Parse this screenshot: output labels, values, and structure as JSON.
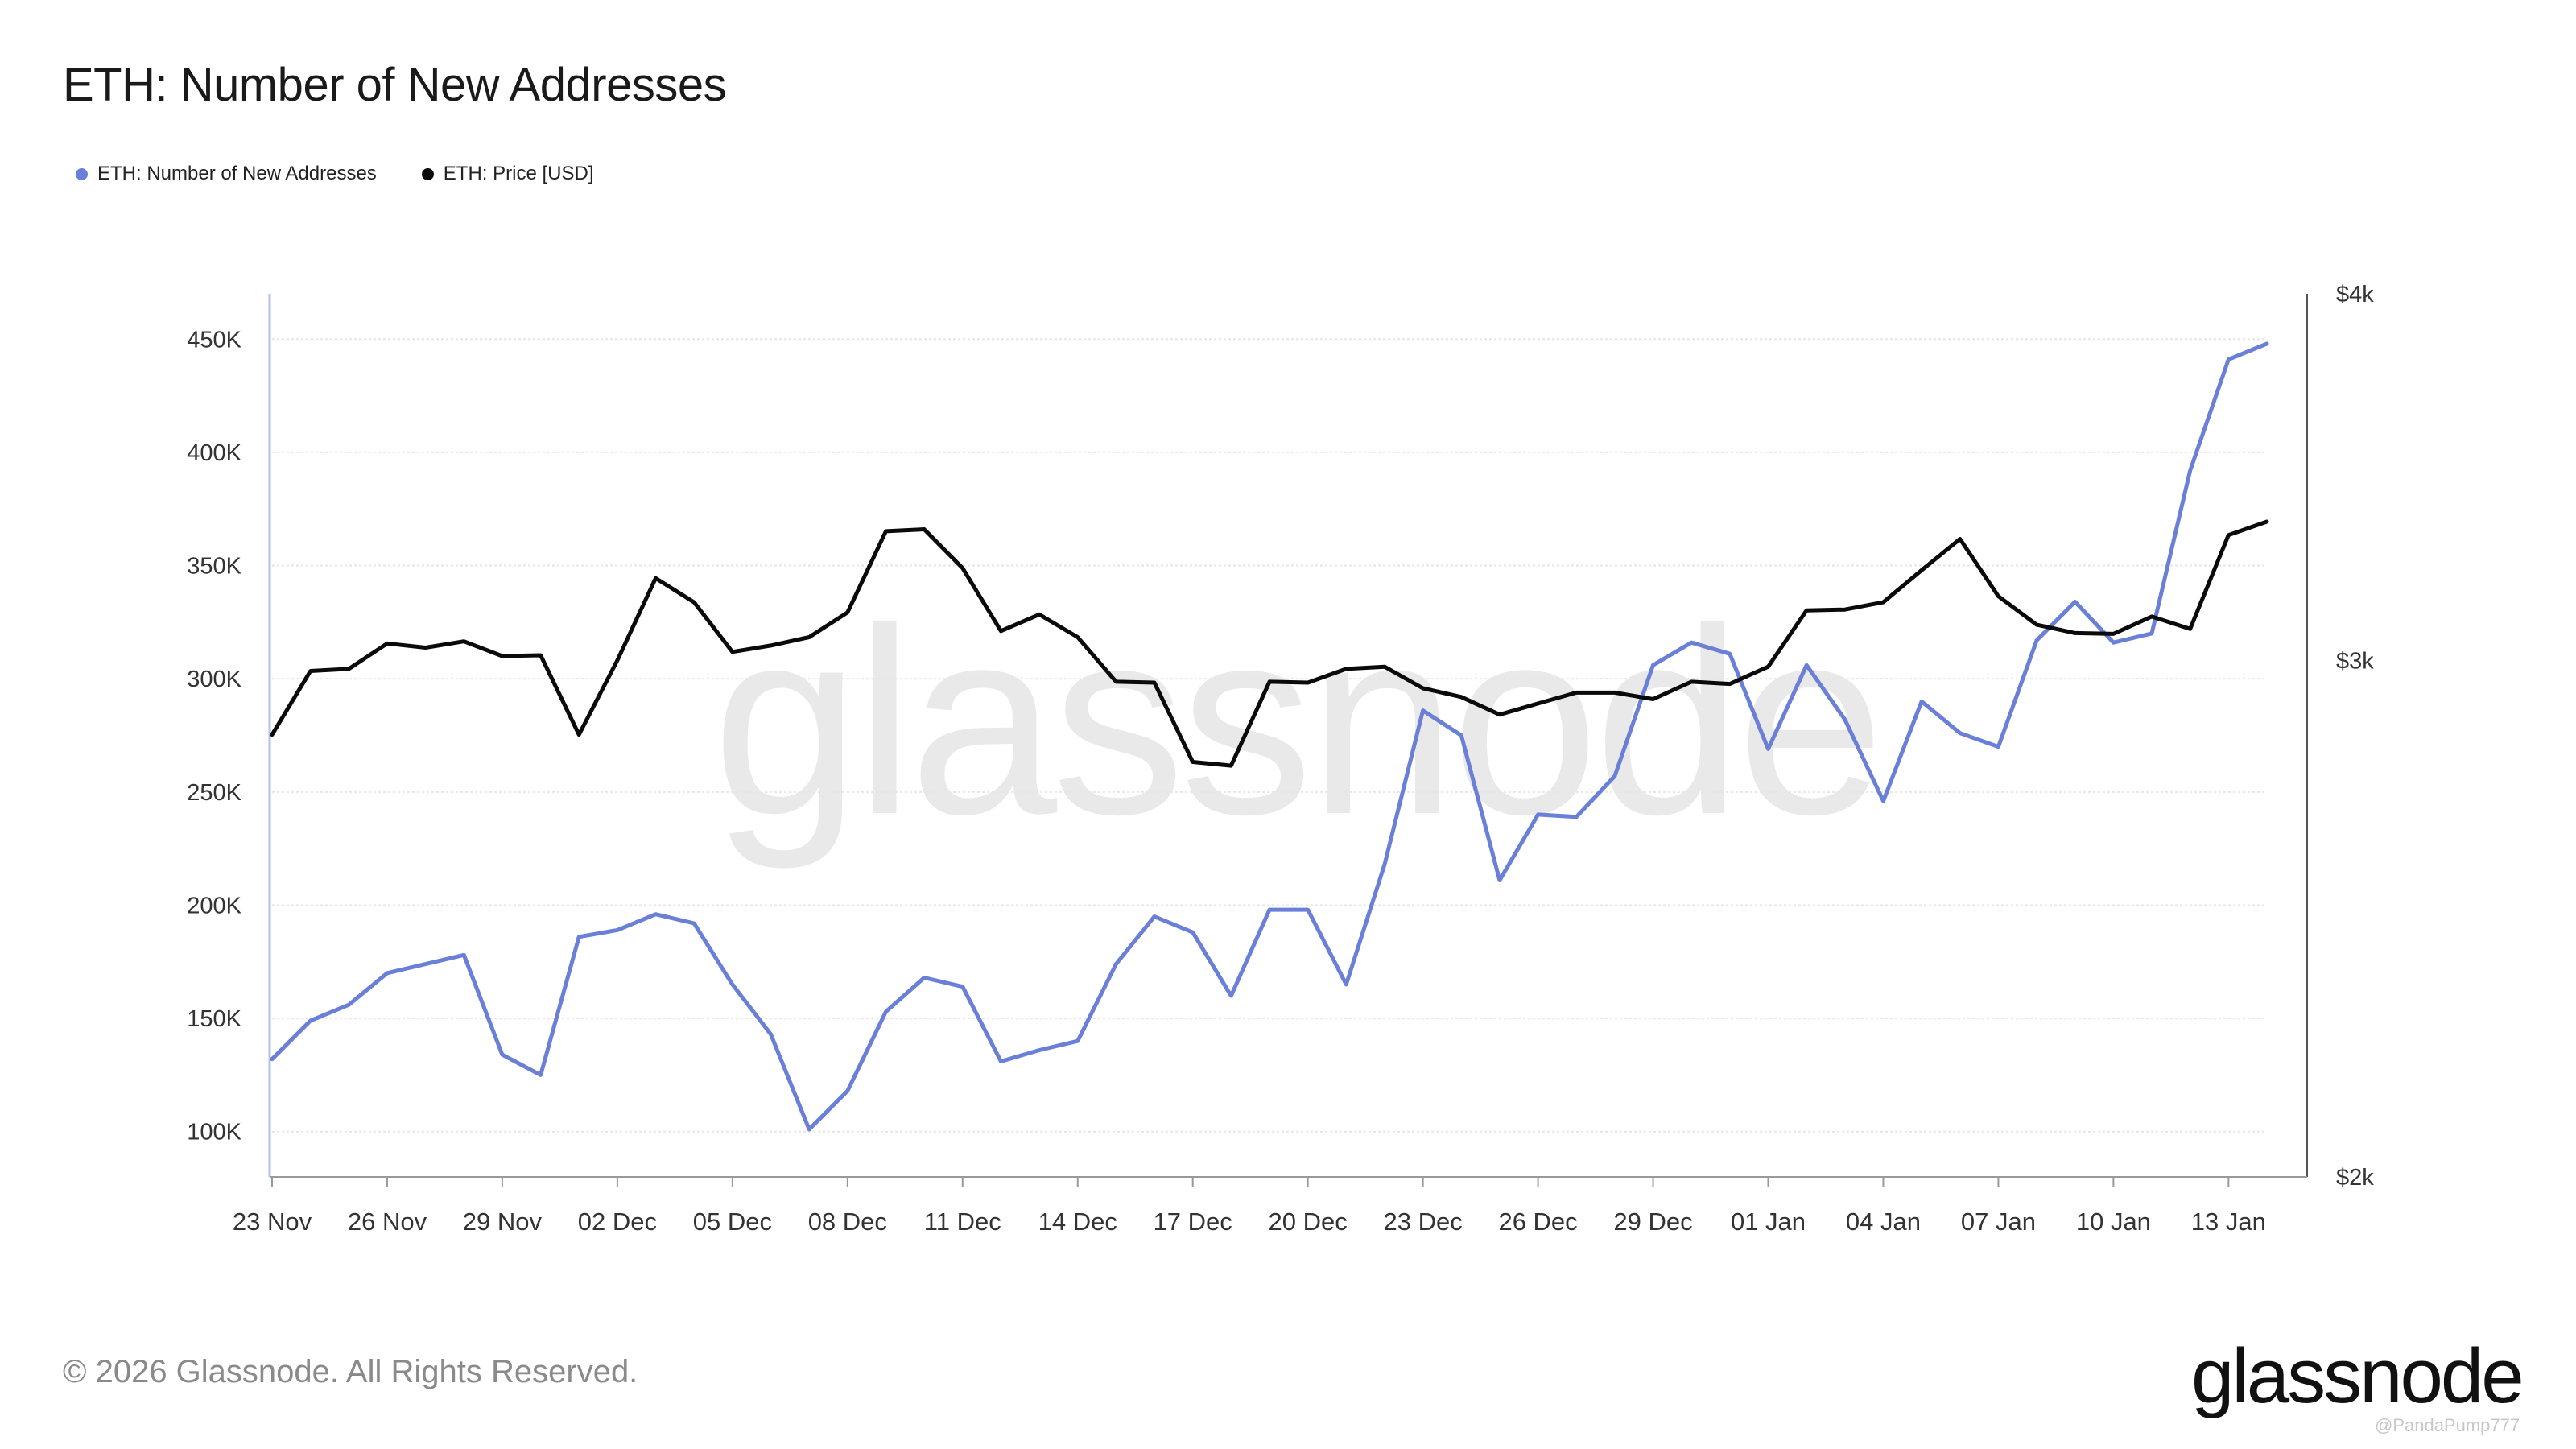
{
  "title": "ETH: Number of New Addresses",
  "footer": "© 2026 Glassnode. All Rights Reserved.",
  "logo": "glassnode",
  "watermark": "glassnode",
  "credit": "@PandaPump777",
  "colors": {
    "addresses": "#6a7fd7",
    "price": "#0a0a0a",
    "grid": "#e6e6e6",
    "axis": "#b7c0e8"
  },
  "chart_data": {
    "type": "line",
    "title": "ETH: Number of New Addresses",
    "legend_position": "top-left",
    "grid": true,
    "x": [
      "23 Nov",
      "24 Nov",
      "25 Nov",
      "26 Nov",
      "27 Nov",
      "28 Nov",
      "29 Nov",
      "30 Nov",
      "01 Dec",
      "02 Dec",
      "03 Dec",
      "04 Dec",
      "05 Dec",
      "06 Dec",
      "07 Dec",
      "08 Dec",
      "09 Dec",
      "10 Dec",
      "11 Dec",
      "12 Dec",
      "13 Dec",
      "14 Dec",
      "15 Dec",
      "16 Dec",
      "17 Dec",
      "18 Dec",
      "19 Dec",
      "20 Dec",
      "21 Dec",
      "22 Dec",
      "23 Dec",
      "24 Dec",
      "25 Dec",
      "26 Dec",
      "27 Dec",
      "28 Dec",
      "29 Dec",
      "30 Dec",
      "31 Dec",
      "01 Jan",
      "02 Jan",
      "03 Jan",
      "04 Jan",
      "05 Jan",
      "06 Jan",
      "07 Jan",
      "08 Jan",
      "09 Jan",
      "10 Jan",
      "11 Jan",
      "12 Jan",
      "13 Jan",
      "14 Jan"
    ],
    "x_ticks": [
      "23 Nov",
      "26 Nov",
      "29 Nov",
      "02 Dec",
      "05 Dec",
      "08 Dec",
      "11 Dec",
      "14 Dec",
      "17 Dec",
      "20 Dec",
      "23 Dec",
      "26 Dec",
      "29 Dec",
      "01 Jan",
      "04 Jan",
      "07 Jan",
      "10 Jan",
      "13 Jan"
    ],
    "y_left": {
      "min": 80000,
      "max": 470000,
      "ticks": [
        100000,
        150000,
        200000,
        250000,
        300000,
        350000,
        400000,
        450000
      ],
      "tick_labels": [
        "100K",
        "150K",
        "200K",
        "250K",
        "300K",
        "350K",
        "400K",
        "450K"
      ]
    },
    "y_right": {
      "min": 2000,
      "max": 4000,
      "scale": "log",
      "ticks": [
        2000,
        3000,
        4000
      ],
      "tick_labels": [
        "$2k",
        "$3k",
        "$4k"
      ]
    },
    "series": [
      {
        "name": "ETH: Number of New Addresses",
        "axis": "left",
        "values": [
          132000,
          149000,
          156000,
          170000,
          174000,
          178000,
          134000,
          125000,
          186000,
          189000,
          196000,
          192000,
          165000,
          143000,
          101000,
          118000,
          153000,
          168000,
          164000,
          131000,
          136000,
          140000,
          174000,
          195000,
          188000,
          160000,
          198000,
          198000,
          165000,
          218000,
          286000,
          275000,
          211000,
          240000,
          239000,
          257000,
          306000,
          316000,
          311000,
          269000,
          306000,
          282000,
          246000,
          290000,
          276000,
          270000,
          317000,
          334000,
          316000,
          320000,
          392000,
          441000,
          448000
        ]
      },
      {
        "name": "ETH: Price [USD]",
        "axis": "right",
        "values": [
          2830,
          2975,
          2980,
          3040,
          3030,
          3045,
          3010,
          3012,
          2830,
          3000,
          3200,
          3140,
          3020,
          3035,
          3055,
          3115,
          3320,
          3325,
          3225,
          3070,
          3110,
          3055,
          2950,
          2948,
          2770,
          2762,
          2950,
          2948,
          2980,
          2985,
          2935,
          2915,
          2875,
          2900,
          2925,
          2925,
          2910,
          2950,
          2945,
          2985,
          3120,
          3122,
          3140,
          3220,
          3300,
          3155,
          3085,
          3065,
          3063,
          3105,
          3075,
          3310,
          3345
        ]
      }
    ]
  }
}
